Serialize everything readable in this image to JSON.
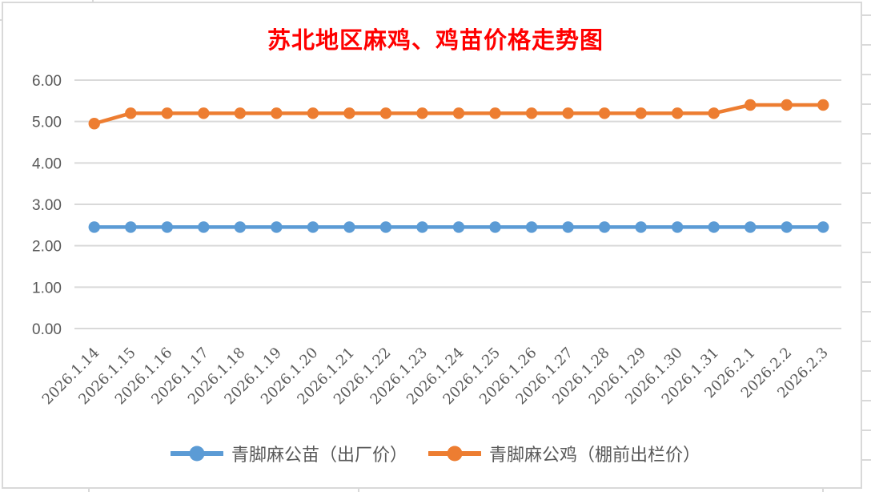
{
  "colors": {
    "title_red": "#FF0000",
    "series_chick_blue": "#5B9BD5",
    "series_rooster_orange": "#ED7D31",
    "gridline_gray": "#D9D9D9",
    "axis_text_gray": "#595959",
    "frame_gray": "#D9D9D9"
  },
  "chart_data": {
    "type": "line",
    "title": "苏北地区麻鸡、鸡苗价格走势图",
    "categories": [
      "2026.1.14",
      "2026.1.15",
      "2026.1.16",
      "2026.1.17",
      "2026.1.18",
      "2026.1.19",
      "2026.1.20",
      "2026.1.21",
      "2026.1.22",
      "2026.1.23",
      "2026.1.24",
      "2026.1.25",
      "2026.1.26",
      "2026.1.27",
      "2026.1.28",
      "2026.1.29",
      "2026.1.30",
      "2026.1.31",
      "2026.2.1",
      "2026.2.2",
      "2026.2.3"
    ],
    "series": [
      {
        "name": "青脚麻公苗（出厂价）",
        "color": "#5B9BD5",
        "values": [
          2.45,
          2.45,
          2.45,
          2.45,
          2.45,
          2.45,
          2.45,
          2.45,
          2.45,
          2.45,
          2.45,
          2.45,
          2.45,
          2.45,
          2.45,
          2.45,
          2.45,
          2.45,
          2.45,
          2.45,
          2.45
        ]
      },
      {
        "name": "青脚麻公鸡（棚前出栏价）",
        "color": "#ED7D31",
        "values": [
          4.95,
          5.2,
          5.2,
          5.2,
          5.2,
          5.2,
          5.2,
          5.2,
          5.2,
          5.2,
          5.2,
          5.2,
          5.2,
          5.2,
          5.2,
          5.2,
          5.2,
          5.2,
          5.4,
          5.4,
          5.4
        ]
      }
    ],
    "ylim": [
      0,
      6
    ],
    "y_ticks": [
      "0.00",
      "1.00",
      "2.00",
      "3.00",
      "4.00",
      "5.00",
      "6.00"
    ],
    "grid": true,
    "legend_position": "bottom",
    "x_label_rotation_deg": 45
  }
}
